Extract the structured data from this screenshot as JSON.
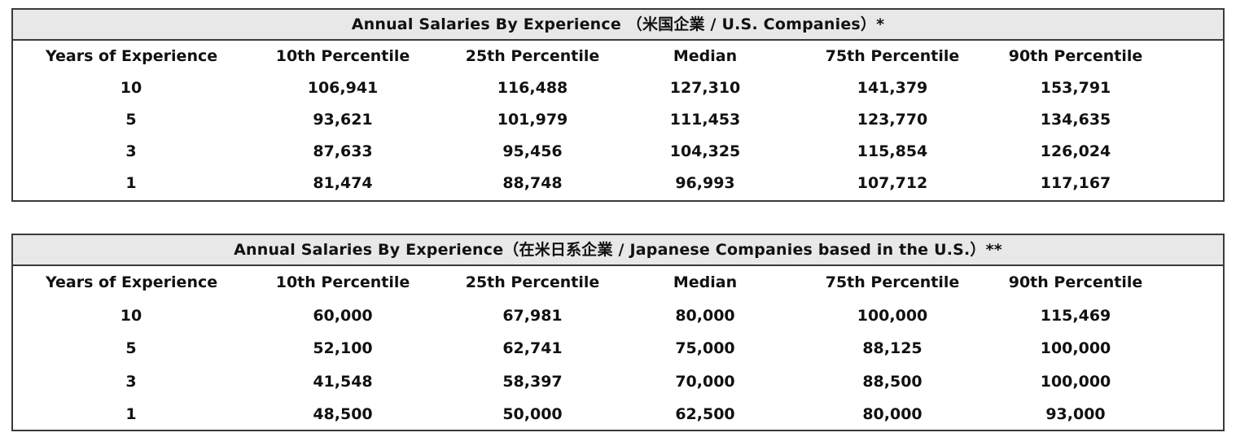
{
  "tables": [
    {
      "caption": "Annual Salaries By Experience （米国企業 / U.S. Companies）*",
      "headers": [
        "Years of Experience",
        "10th Percentile",
        "25th Percentile",
        "Median",
        "75th Percentile",
        "90th Percentile"
      ],
      "rows": [
        [
          "10",
          "106,941",
          "116,488",
          "127,310",
          "141,379",
          "153,791"
        ],
        [
          "5",
          "93,621",
          "101,979",
          "111,453",
          "123,770",
          "134,635"
        ],
        [
          "3",
          "87,633",
          "95,456",
          "104,325",
          "115,854",
          "126,024"
        ],
        [
          "1",
          "81,474",
          "88,748",
          "96,993",
          "107,712",
          "117,167"
        ]
      ]
    },
    {
      "caption": "Annual Salaries By Experience（在米日系企業 / Japanese Companies based in the U.S.）**",
      "headers": [
        "Years of Experience",
        "10th Percentile",
        "25th Percentile",
        "Median",
        "75th Percentile",
        "90th Percentile"
      ],
      "rows": [
        [
          "10",
          "60,000",
          "67,981",
          "80,000",
          "100,000",
          "115,469"
        ],
        [
          "5",
          "52,100",
          "62,741",
          "75,000",
          "88,125",
          "100,000"
        ],
        [
          "3",
          "41,548",
          "58,397",
          "70,000",
          "88,500",
          "100,000"
        ],
        [
          "1",
          "48,500",
          "50,000",
          "62,500",
          "80,000",
          "93,000"
        ]
      ]
    }
  ]
}
